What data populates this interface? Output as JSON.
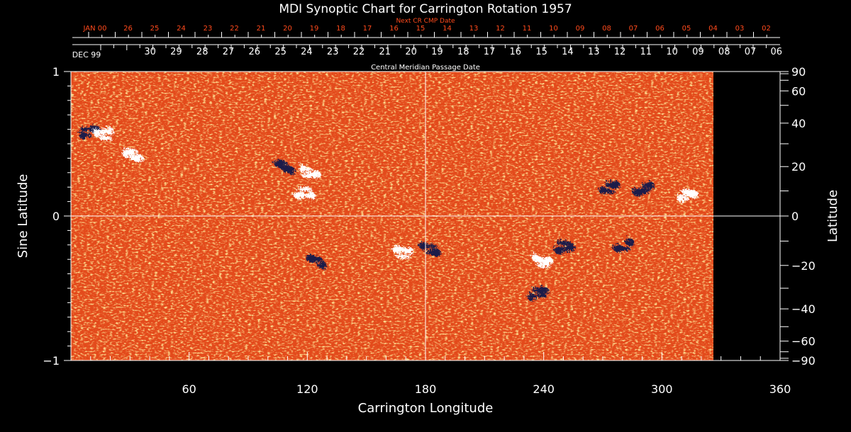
{
  "chart_data": {
    "type": "heatmap",
    "title": "MDI Synoptic Chart for Carrington Rotation 1957",
    "xlabel": "Carrington Longitude",
    "ylabel_left": "Sine Latitude",
    "ylabel_right": "Latitude",
    "top_axis_label": "Central Meridian Passage Date",
    "next_axis_label": "Next CR CMP Date",
    "xlim": [
      0,
      360
    ],
    "ylim": [
      -1,
      1
    ],
    "data_extent_longitude": [
      0,
      326
    ],
    "x_ticks": [
      60,
      120,
      180,
      240,
      300,
      360
    ],
    "y_ticks_left": [
      "1",
      "0",
      "−1"
    ],
    "y_ticks_right": [
      "90",
      "60",
      "40",
      "20",
      "0",
      "−20",
      "−40",
      "−60",
      "−90"
    ],
    "cmp_dates": [
      "DEC 99",
      "30",
      "29",
      "28",
      "27",
      "26",
      "25",
      "24",
      "23",
      "22",
      "21",
      "20",
      "19",
      "18",
      "17",
      "16",
      "15",
      "14",
      "13",
      "12",
      "11",
      "10",
      "09",
      "08",
      "07",
      "06"
    ],
    "next_cmp_dates": [
      "JAN 00",
      "26",
      "25",
      "24",
      "23",
      "22",
      "21",
      "20",
      "19",
      "18",
      "17",
      "16",
      "15",
      "14",
      "13",
      "12",
      "11",
      "10",
      "09",
      "08",
      "07",
      "06",
      "05",
      "04",
      "03",
      "02"
    ],
    "colors": {
      "background_field": "#e8481a",
      "negative_polarity": "#1c1c4a",
      "positive_polarity": "#ffffff",
      "axis": "#ffffff",
      "date_labels_next": "#ff4a1c"
    },
    "active_regions": [
      {
        "longitude": 8,
        "sine_latitude": 0.6,
        "polarity": "negative"
      },
      {
        "longitude": 16,
        "sine_latitude": 0.58,
        "polarity": "positive"
      },
      {
        "longitude": 30,
        "sine_latitude": 0.44,
        "polarity": "positive"
      },
      {
        "longitude": 108,
        "sine_latitude": 0.35,
        "polarity": "negative"
      },
      {
        "longitude": 120,
        "sine_latitude": 0.31,
        "polarity": "positive"
      },
      {
        "longitude": 118,
        "sine_latitude": 0.17,
        "polarity": "positive"
      },
      {
        "longitude": 272,
        "sine_latitude": 0.2,
        "polarity": "negative"
      },
      {
        "longitude": 290,
        "sine_latitude": 0.2,
        "polarity": "negative"
      },
      {
        "longitude": 312,
        "sine_latitude": 0.16,
        "polarity": "positive"
      },
      {
        "longitude": 168,
        "sine_latitude": -0.24,
        "polarity": "positive"
      },
      {
        "longitude": 181,
        "sine_latitude": -0.21,
        "polarity": "negative"
      },
      {
        "longitude": 124,
        "sine_latitude": -0.3,
        "polarity": "negative"
      },
      {
        "longitude": 238,
        "sine_latitude": -0.3,
        "polarity": "positive"
      },
      {
        "longitude": 250,
        "sine_latitude": -0.2,
        "polarity": "negative"
      },
      {
        "longitude": 236,
        "sine_latitude": -0.53,
        "polarity": "negative"
      },
      {
        "longitude": 280,
        "sine_latitude": -0.2,
        "polarity": "negative"
      }
    ]
  }
}
